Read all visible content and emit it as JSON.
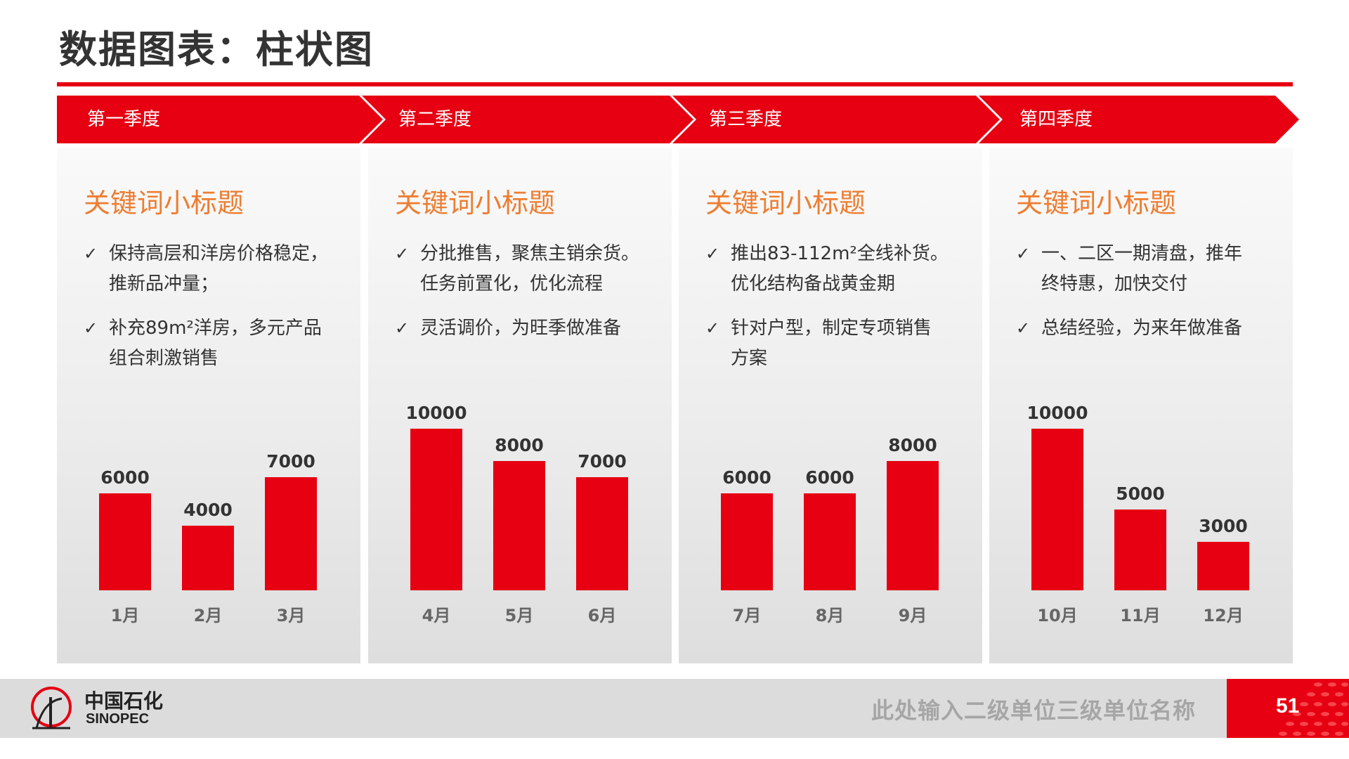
{
  "title": "数据图表：柱状图",
  "colors": {
    "accent": "#e60012",
    "keyword": "#ee7d31",
    "text": "#333333"
  },
  "quarters": [
    {
      "label": "第一季度",
      "keyword": "关键词小标题",
      "bullets": [
        [
          "保持高层和洋房价格稳定，",
          "推新品冲量；"
        ],
        [
          "补充89m²洋房，多元产品",
          "组合刺激销售"
        ]
      ]
    },
    {
      "label": "第二季度",
      "keyword": "关键词小标题",
      "bullets": [
        [
          "分批推售，聚焦主销余货。",
          "任务前置化，优化流程"
        ],
        [
          "灵活调价，为旺季做准备"
        ]
      ]
    },
    {
      "label": "第三季度",
      "keyword": "关键词小标题",
      "bullets": [
        [
          "推出83-112m²全线补货。",
          "优化结构备战黄金期"
        ],
        [
          "针对户型，制定专项销售",
          "方案"
        ]
      ]
    },
    {
      "label": "第四季度",
      "keyword": "关键词小标题",
      "bullets": [
        [
          "一、二区一期清盘，推年",
          "终特惠，加快交付"
        ],
        [
          "总结经验，为来年做准备"
        ]
      ]
    }
  ],
  "chart_data": [
    {
      "type": "bar",
      "categories": [
        "1月",
        "2月",
        "3月"
      ],
      "values": [
        6000,
        4000,
        7000
      ],
      "ylim": [
        0,
        10000
      ]
    },
    {
      "type": "bar",
      "categories": [
        "4月",
        "5月",
        "6月"
      ],
      "values": [
        10000,
        8000,
        7000
      ],
      "ylim": [
        0,
        10000
      ]
    },
    {
      "type": "bar",
      "categories": [
        "7月",
        "8月",
        "9月"
      ],
      "values": [
        6000,
        6000,
        8000
      ],
      "ylim": [
        0,
        10000
      ]
    },
    {
      "type": "bar",
      "categories": [
        "10月",
        "11月",
        "12月"
      ],
      "values": [
        10000,
        5000,
        3000
      ],
      "ylim": [
        0,
        10000
      ]
    }
  ],
  "footer": {
    "logo_cn": "中国石化",
    "logo_en": "SINOPEC",
    "unit_name": "此处输入二级单位三级单位名称",
    "page_number": "51"
  }
}
